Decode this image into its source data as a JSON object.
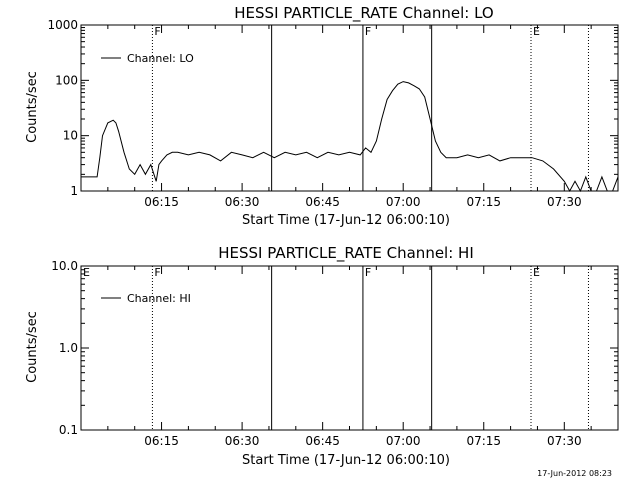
{
  "chart_data": [
    {
      "type": "line",
      "title": "HESSI PARTICLE_RATE Channel: LO",
      "xlabel": "Start Time (17-Jun-12 06:00:10)",
      "ylabel": "Counts/sec",
      "yscale": "log",
      "ylim": [
        1,
        1000
      ],
      "xlim_minutes": [
        0,
        100
      ],
      "x_tick_labels": [
        "06:15",
        "06:30",
        "06:45",
        "07:00",
        "07:15",
        "07:30"
      ],
      "y_tick_labels": [
        "1",
        "10",
        "100",
        "1000"
      ],
      "legend": [
        "Channel: LO"
      ],
      "legend_position": "top-left",
      "series": [
        {
          "name": "Channel: LO",
          "x": [
            0,
            3,
            3.5,
            4,
            5,
            6,
            6.5,
            7,
            8,
            9,
            10,
            11,
            12,
            13,
            14,
            14.5,
            15,
            16,
            17,
            18,
            20,
            22,
            24,
            26,
            28,
            30,
            32,
            34,
            36,
            38,
            40,
            42,
            44,
            46,
            48,
            50,
            52,
            53,
            54,
            55,
            56,
            57,
            58,
            59,
            60,
            61,
            62,
            63,
            64,
            65,
            66,
            67,
            68,
            70,
            72,
            74,
            76,
            78,
            80,
            82,
            84,
            86,
            88,
            90,
            91,
            92,
            93,
            94,
            95,
            96,
            97,
            98,
            99,
            100
          ],
          "y": [
            1.8,
            1.8,
            4,
            10,
            17,
            19,
            17,
            12,
            5,
            2.5,
            2,
            3,
            2,
            3,
            1.5,
            3,
            3.5,
            4.5,
            5,
            5,
            4.5,
            5,
            4.5,
            3.5,
            5,
            4.5,
            4,
            5,
            4,
            5,
            4.5,
            5,
            4,
            5,
            4.5,
            5,
            4.5,
            6,
            5,
            8,
            20,
            45,
            65,
            85,
            95,
            90,
            80,
            70,
            50,
            20,
            8,
            5,
            4,
            4,
            4.5,
            4,
            4.5,
            3.5,
            4,
            4,
            4,
            3.5,
            2.5,
            1.5,
            1,
            1.5,
            1,
            1.8,
            1,
            1,
            1.8,
            1,
            1,
            1.8
          ]
        }
      ],
      "vertical_markers": [
        {
          "minute": 13.3,
          "style": "dotted",
          "label": "F"
        },
        {
          "minute": 35.5,
          "style": "solid",
          "label": ""
        },
        {
          "minute": 52.5,
          "style": "solid",
          "label": "F"
        },
        {
          "minute": 65.3,
          "style": "solid",
          "label": ""
        },
        {
          "minute": 83.8,
          "style": "dotted",
          "label": "E"
        },
        {
          "minute": 94.5,
          "style": "dotted",
          "label": ""
        }
      ],
      "grid": false
    },
    {
      "type": "line",
      "title": "HESSI PARTICLE_RATE Channel: HI",
      "xlabel": "Start Time (17-Jun-12 06:00:10)",
      "ylabel": "Counts/sec",
      "yscale": "log",
      "ylim": [
        0.1,
        10
      ],
      "xlim_minutes": [
        0,
        100
      ],
      "x_tick_labels": [
        "06:15",
        "06:30",
        "06:45",
        "07:00",
        "07:15",
        "07:30"
      ],
      "y_tick_labels": [
        "0.1",
        "1.0",
        "10.0"
      ],
      "legend": [
        "Channel: HI"
      ],
      "legend_position": "top-left",
      "series": [
        {
          "name": "Channel: HI",
          "x": [],
          "y": []
        }
      ],
      "vertical_markers": [
        {
          "minute": 0,
          "style": "solid",
          "label": "E"
        },
        {
          "minute": 13.3,
          "style": "dotted",
          "label": "F"
        },
        {
          "minute": 35.5,
          "style": "solid",
          "label": ""
        },
        {
          "minute": 52.5,
          "style": "solid",
          "label": "F"
        },
        {
          "minute": 65.3,
          "style": "solid",
          "label": ""
        },
        {
          "minute": 83.8,
          "style": "dotted",
          "label": "E"
        },
        {
          "minute": 94.5,
          "style": "dotted",
          "label": ""
        }
      ],
      "grid": false
    }
  ],
  "footer": {
    "timestamp": "17-Jun-2012 08:23"
  }
}
